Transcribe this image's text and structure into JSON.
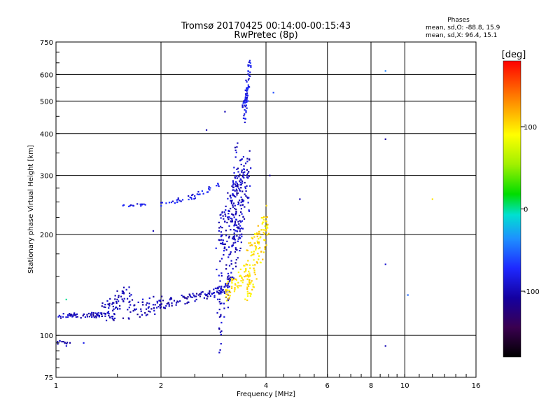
{
  "chart_data": {
    "type": "scatter",
    "title": "Tromsø 20170425 00:14:00-00:15:43",
    "subtitle": "RwPretec (8p)",
    "xlabel": "Frequency [MHz]",
    "ylabel": "Stationary phase Virtual Height [km]",
    "x_scale": "log",
    "y_scale": "log",
    "xlim": [
      1,
      16
    ],
    "ylim": [
      75,
      750
    ],
    "x_ticks": [
      1,
      2,
      4,
      6,
      8,
      10,
      16
    ],
    "x_tick_labels": [
      "1",
      "2",
      "4",
      "6",
      "8",
      "10",
      "16"
    ],
    "y_ticks": [
      75,
      100,
      200,
      300,
      400,
      500,
      600,
      750
    ],
    "y_tick_labels": [
      "75",
      "100",
      "200",
      "300",
      "400",
      "500",
      "600",
      "750"
    ],
    "grid": true,
    "phase_box": {
      "heading": "Phases",
      "line_o": "mean, sd,O: -88.8, 15.9",
      "line_x": "mean, sd,X:  96.4, 15.1"
    },
    "colorbar": {
      "label": "[deg]",
      "range": [
        -180,
        180
      ],
      "ticks": [
        100,
        0,
        -100
      ],
      "tick_labels": [
        "100",
        "0",
        "-100"
      ]
    },
    "colors": {
      "o_mode": "#1a2fd8",
      "o_mode_light": "#1e90ff",
      "o_mode_cyan": "#00c8e0",
      "x_mode": "#f5c400",
      "sparse": "#3050e0"
    },
    "series": [
      {
        "mode": "o_low",
        "phase": -100,
        "segments": [
          {
            "x0": 1.0,
            "x1": 1.1,
            "y0": 95,
            "y1": 94,
            "n": 12,
            "spread": 2
          },
          {
            "x0": 1.0,
            "x1": 1.5,
            "y0": 114,
            "y1": 116,
            "n": 60,
            "spread": 2
          },
          {
            "x0": 1.3,
            "x1": 2.0,
            "y0": 116,
            "y1": 124,
            "n": 90,
            "spread": 8
          },
          {
            "x0": 2.0,
            "x1": 2.8,
            "y0": 124,
            "y1": 133,
            "n": 70,
            "spread": 4
          },
          {
            "x0": 1.4,
            "x1": 1.65,
            "y0": 120,
            "y1": 140,
            "n": 35,
            "spread": 8
          }
        ]
      },
      {
        "mode": "o_rising",
        "phase": -95,
        "segments": [
          {
            "x0": 2.8,
            "x1": 3.1,
            "y0": 133,
            "y1": 140,
            "n": 30,
            "spread": 4
          },
          {
            "x0": 2.9,
            "x1": 3.45,
            "y0": 150,
            "y1": 280,
            "n": 260,
            "spread": 70
          },
          {
            "x0": 3.2,
            "x1": 3.6,
            "y0": 200,
            "y1": 300,
            "n": 80,
            "spread": 60
          },
          {
            "x0": 3.2,
            "x1": 3.3,
            "y0": 260,
            "y1": 380,
            "n": 12,
            "spread": 20
          }
        ]
      },
      {
        "mode": "o_f2_upper",
        "phase": -80,
        "segments": [
          {
            "x0": 1.55,
            "x1": 1.8,
            "y0": 243,
            "y1": 246,
            "n": 14,
            "spread": 2
          },
          {
            "x0": 2.0,
            "x1": 2.5,
            "y0": 245,
            "y1": 260,
            "n": 25,
            "spread": 4
          },
          {
            "x0": 2.4,
            "x1": 3.0,
            "y0": 255,
            "y1": 285,
            "n": 18,
            "spread": 6
          },
          {
            "x0": 3.45,
            "x1": 3.6,
            "y0": 455,
            "y1": 640,
            "n": 70,
            "spread": 30
          }
        ]
      },
      {
        "mode": "x_mode",
        "phase": 100,
        "segments": [
          {
            "x0": 3.05,
            "x1": 3.6,
            "y0": 133,
            "y1": 160,
            "n": 60,
            "spread": 10
          },
          {
            "x0": 3.5,
            "x1": 4.05,
            "y0": 150,
            "y1": 215,
            "n": 130,
            "spread": 30
          }
        ]
      }
    ],
    "isolated_points": [
      {
        "x": 8.8,
        "y": 615,
        "phase": -40
      },
      {
        "x": 8.8,
        "y": 385,
        "phase": -110
      },
      {
        "x": 8.8,
        "y": 163,
        "phase": -90
      },
      {
        "x": 8.8,
        "y": 93,
        "phase": -100
      },
      {
        "x": 10.2,
        "y": 132,
        "phase": -50
      },
      {
        "x": 12.0,
        "y": 255,
        "phase": 100
      },
      {
        "x": 5.0,
        "y": 255,
        "phase": -100
      },
      {
        "x": 4.1,
        "y": 300,
        "phase": -110
      },
      {
        "x": 4.2,
        "y": 530,
        "phase": -60
      },
      {
        "x": 2.7,
        "y": 410,
        "phase": -100
      },
      {
        "x": 3.05,
        "y": 465,
        "phase": -100
      },
      {
        "x": 1.07,
        "y": 128,
        "phase": 0
      },
      {
        "x": 1.2,
        "y": 95,
        "phase": -80
      },
      {
        "x": 1.9,
        "y": 205,
        "phase": -100
      }
    ]
  }
}
